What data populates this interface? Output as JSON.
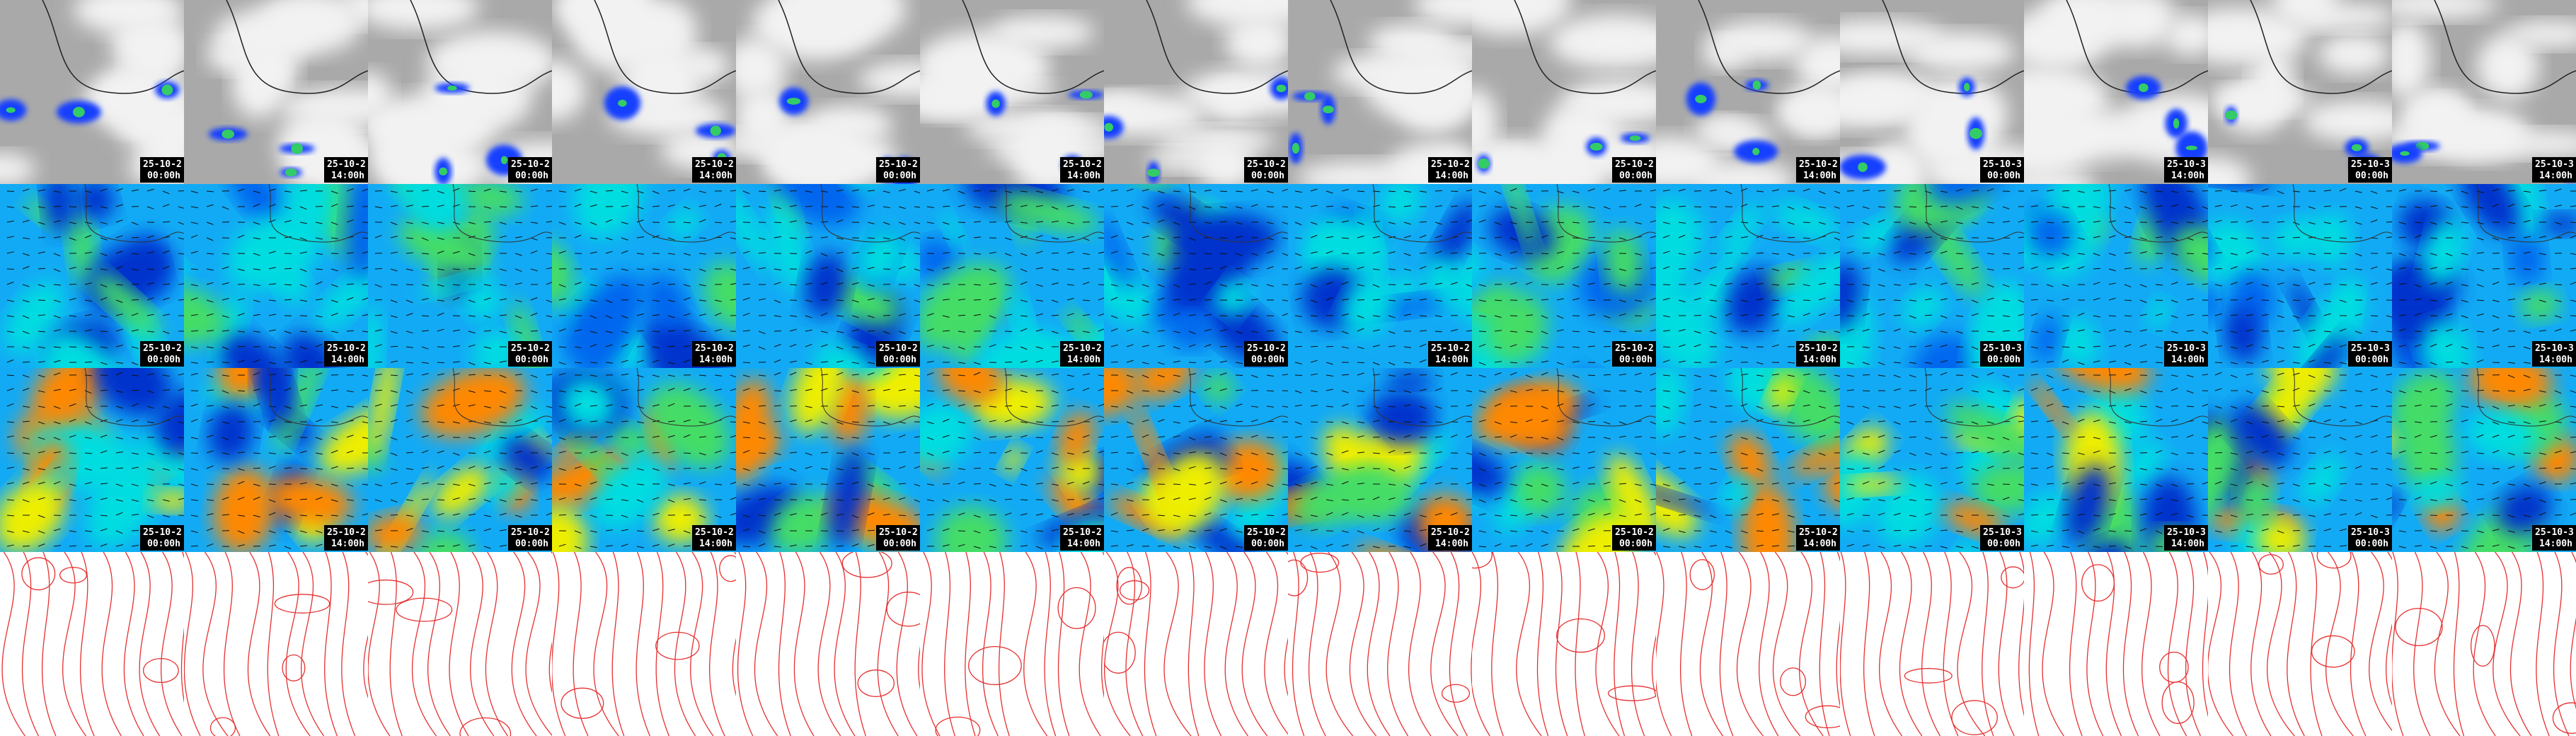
{
  "columns": [
    {
      "date": "25-10-2",
      "time": "00:00h"
    },
    {
      "date": "25-10-2",
      "time": "14:00h"
    },
    {
      "date": "25-10-2",
      "time": "00:00h"
    },
    {
      "date": "25-10-2",
      "time": "14:00h"
    },
    {
      "date": "25-10-2",
      "time": "00:00h"
    },
    {
      "date": "25-10-2",
      "time": "14:00h"
    },
    {
      "date": "25-10-2",
      "time": "00:00h"
    },
    {
      "date": "25-10-2",
      "time": "14:00h"
    },
    {
      "date": "25-10-2",
      "time": "00:00h"
    },
    {
      "date": "25-10-2",
      "time": "14:00h"
    },
    {
      "date": "25-10-3",
      "time": "00:00h"
    },
    {
      "date": "25-10-3",
      "time": "14:00h"
    },
    {
      "date": "25-10-3",
      "time": "00:00h"
    },
    {
      "date": "25-10-3",
      "time": "14:00h"
    }
  ]
}
